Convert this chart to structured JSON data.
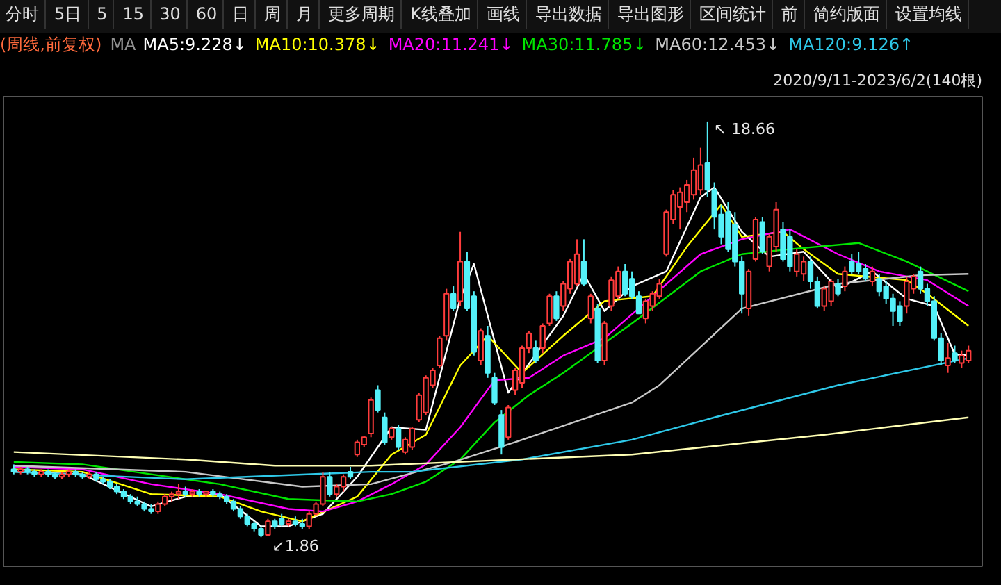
{
  "chart_data": {
    "type": "candlestick",
    "title": "(周线,前复权)",
    "subtitle": "2020/9/11-2023/6/2(140根)",
    "legend_title": "MA",
    "legend": "top",
    "annotations": [
      "分时",
      "5日",
      "5",
      "15",
      "30",
      "60",
      "日",
      "周",
      "月",
      "更多周期",
      "K线叠加",
      "画线",
      "导出数据",
      "导出图形",
      "区间统计",
      "前",
      "简约版面",
      "设置均线"
    ],
    "colors": [
      "#54f0f8",
      "#ff3c3c",
      "#54f0f8",
      "#54f0f8",
      "#ff3c3c",
      "#54f0f8",
      "#54f0f8",
      "#ff3c3c",
      "#ff3c3c",
      "#54f0f8",
      "#54f0f8",
      "#ff3c3c",
      "#54f0f8",
      "#54f0f8",
      "#54f0f8",
      "#54f0f8",
      "#54f0f8",
      "#54f0f8",
      "#54f0f8",
      "#54f0f8",
      "#54f0f8",
      "#ff3c3c",
      "#ff3c3c",
      "#ff3c3c",
      "#ff3c3c",
      "#54f0f8",
      "#ff3c3c",
      "#54f0f8",
      "#ff3c3c",
      "#54f0f8",
      "#54f0f8",
      "#54f0f8",
      "#54f0f8",
      "#54f0f8",
      "#54f0f8",
      "#54f0f8",
      "#54f0f8",
      "#ff3c3c",
      "#54f0f8",
      "#54f0f8",
      "#ff3c3c",
      "#54f0f8",
      "#54f0f8",
      "#ff3c3c",
      "#ff3c3c",
      "#ff3c3c",
      "#54f0f8",
      "#ff3c3c",
      "#ff3c3c",
      "#54f0f8",
      "#ff3c3c",
      "#ff3c3c",
      "#ff3c3c",
      "#54f0f8",
      "#54f0f8",
      "#ff3c3c",
      "#54f0f8",
      "#ff3c3c",
      "#ff3c3c",
      "#ff3c3c",
      "#ff3c3c",
      "#ff3c3c",
      "#ff3c3c",
      "#ff3c3c",
      "#54f0f8",
      "#ff3c3c",
      "#54f0f8",
      "#54f0f8",
      "#ff3c3c",
      "#54f0f8",
      "#54f0f8",
      "#54f0f8",
      "#ff3c3c",
      "#ff3c3c",
      "#ff3c3c",
      "#ff3c3c",
      "#54f0f8",
      "#ff3c3c",
      "#ff3c3c",
      "#54f0f8",
      "#ff3c3c",
      "#ff3c3c",
      "#ff3c3c",
      "#54f0f8",
      "#ff3c3c",
      "#54f0f8",
      "#ff3c3c",
      "#ff3c3c",
      "#ff3c3c",
      "#54f0f8",
      "#54f0f8",
      "#54f0f8",
      "#ff3c3c",
      "#ff3c3c",
      "#ff3c3c",
      "#ff3c3c",
      "#ff3c3c",
      "#ff3c3c",
      "#ff3c3c",
      "#ff3c3c",
      "#ff3c3c",
      "#54f0f8",
      "#54f0f8",
      "#54f0f8",
      "#54f0f8",
      "#54f0f8",
      "#54f0f8",
      "#ff3c3c",
      "#ff3c3c",
      "#54f0f8",
      "#ff3c3c",
      "#ff3c3c",
      "#54f0f8",
      "#54f0f8",
      "#ff3c3c",
      "#ff3c3c",
      "#54f0f8",
      "#54f0f8",
      "#ff3c3c",
      "#ff3c3c",
      "#54f0f8",
      "#ff3c3c",
      "#54f0f8",
      "#54f0f8",
      "#54f0f8",
      "#ff3c3c",
      "#54f0f8",
      "#54f0f8",
      "#54f0f8",
      "#54f0f8",
      "#ff3c3c",
      "#ff3c3c",
      "#54f0f8",
      "#54f0f8",
      "#54f0f8",
      "#54f0f8",
      "#ff3c3c",
      "#54f0f8",
      "#ff3c3c",
      "#ff3c3c"
    ],
    "categories": [
      null,
      null,
      null,
      null,
      null,
      null,
      null,
      null,
      null,
      null,
      null,
      null,
      null,
      null,
      null,
      null,
      null,
      null,
      null,
      null,
      null,
      null,
      null,
      null,
      null,
      null,
      null,
      null,
      null,
      null,
      null,
      null,
      null,
      null,
      null,
      null,
      null,
      null,
      null,
      null,
      null,
      null,
      null,
      null,
      null,
      null,
      null,
      null,
      null,
      null,
      null,
      null,
      null,
      null,
      null,
      null,
      null,
      null,
      null,
      null,
      null,
      null,
      null,
      null,
      null,
      null,
      null,
      null,
      null,
      null,
      null,
      null,
      null,
      null,
      null,
      null,
      null,
      null,
      null,
      null,
      null,
      null,
      null,
      null,
      null,
      null,
      null,
      null,
      null,
      null,
      null,
      null,
      null,
      null,
      null,
      null,
      null,
      null,
      null,
      null,
      null,
      null,
      null,
      null,
      null,
      null,
      null,
      null,
      null,
      null,
      null,
      null,
      null,
      null,
      null,
      null,
      null,
      null,
      null,
      null,
      null,
      null,
      null,
      null,
      null,
      null,
      null,
      null,
      null,
      null,
      null,
      null,
      null,
      null,
      null,
      null,
      null,
      null,
      null,
      null
    ],
    "ohlc": [
      [
        4.6,
        4.8,
        4.4,
        4.5
      ],
      [
        4.5,
        4.7,
        4.4,
        4.6
      ],
      [
        4.6,
        4.7,
        4.4,
        4.5
      ],
      [
        4.5,
        4.6,
        4.3,
        4.4
      ],
      [
        4.4,
        4.6,
        4.3,
        4.5
      ],
      [
        4.5,
        4.6,
        4.3,
        4.4
      ],
      [
        4.4,
        4.5,
        4.2,
        4.3
      ],
      [
        4.3,
        4.5,
        4.2,
        4.4
      ],
      [
        4.4,
        4.6,
        4.3,
        4.5
      ],
      [
        4.5,
        4.6,
        4.3,
        4.4
      ],
      [
        4.4,
        4.5,
        4.2,
        4.3
      ],
      [
        4.3,
        4.5,
        4.2,
        4.4
      ],
      [
        4.4,
        4.5,
        4.1,
        4.2
      ],
      [
        4.2,
        4.3,
        4.0,
        4.1
      ],
      [
        4.1,
        4.2,
        3.8,
        3.9
      ],
      [
        3.9,
        4.0,
        3.6,
        3.7
      ],
      [
        3.7,
        3.8,
        3.4,
        3.5
      ],
      [
        3.5,
        3.6,
        3.2,
        3.3
      ],
      [
        3.3,
        3.5,
        3.1,
        3.2
      ],
      [
        3.2,
        3.3,
        2.9,
        3.0
      ],
      [
        3.0,
        3.2,
        2.8,
        2.9
      ],
      [
        2.9,
        3.3,
        2.8,
        3.2
      ],
      [
        3.2,
        3.6,
        3.1,
        3.5
      ],
      [
        3.5,
        3.7,
        3.3,
        3.6
      ],
      [
        3.6,
        4.0,
        3.4,
        3.7
      ],
      [
        3.7,
        3.9,
        3.5,
        3.6
      ],
      [
        3.6,
        3.8,
        3.5,
        3.7
      ],
      [
        3.7,
        3.8,
        3.5,
        3.6
      ],
      [
        3.6,
        3.7,
        3.5,
        3.7
      ],
      [
        3.7,
        3.8,
        3.5,
        3.6
      ],
      [
        3.6,
        3.7,
        3.4,
        3.5
      ],
      [
        3.5,
        3.6,
        3.2,
        3.3
      ],
      [
        3.3,
        3.4,
        2.9,
        3.0
      ],
      [
        3.0,
        3.1,
        2.6,
        2.7
      ],
      [
        2.7,
        2.8,
        2.3,
        2.4
      ],
      [
        2.4,
        2.5,
        2.1,
        2.2
      ],
      [
        2.2,
        2.3,
        1.86,
        1.95
      ],
      [
        1.95,
        2.6,
        1.9,
        2.5
      ],
      [
        2.5,
        2.6,
        2.2,
        2.3
      ],
      [
        2.6,
        2.8,
        2.3,
        2.4
      ],
      [
        2.4,
        2.6,
        2.3,
        2.5
      ],
      [
        2.5,
        2.7,
        2.3,
        2.4
      ],
      [
        2.4,
        2.6,
        2.2,
        2.3
      ],
      [
        2.3,
        2.9,
        2.2,
        2.8
      ],
      [
        2.8,
        3.3,
        2.7,
        3.2
      ],
      [
        3.2,
        4.5,
        3.1,
        4.3
      ],
      [
        4.3,
        4.5,
        3.5,
        3.6
      ],
      [
        3.6,
        4.0,
        3.5,
        3.9
      ],
      [
        3.9,
        4.4,
        3.7,
        4.3
      ],
      [
        4.5,
        4.7,
        4.2,
        4.3
      ],
      [
        5.2,
        5.8,
        5.1,
        5.7
      ],
      [
        5.6,
        5.95,
        5.5,
        5.9
      ],
      [
        6.05,
        7.5,
        5.9,
        7.4
      ],
      [
        7.8,
        8.0,
        6.9,
        7.0
      ],
      [
        6.7,
        6.9,
        5.6,
        5.7
      ],
      [
        5.9,
        6.3,
        5.8,
        6.25
      ],
      [
        6.25,
        6.4,
        5.4,
        5.5
      ],
      [
        5.3,
        5.9,
        5.2,
        5.8
      ],
      [
        5.5,
        6.3,
        5.4,
        6.25
      ],
      [
        6.6,
        7.7,
        6.5,
        7.6
      ],
      [
        6.9,
        8.4,
        6.8,
        8.3
      ],
      [
        8.0,
        8.7,
        7.9,
        8.6
      ],
      [
        8.8,
        10.0,
        8.7,
        9.9
      ],
      [
        10.0,
        11.9,
        9.8,
        11.7
      ],
      [
        11.7,
        12.0,
        11.0,
        11.1
      ],
      [
        11.4,
        14.2,
        11.2,
        13.0
      ],
      [
        13.0,
        13.4,
        11.0,
        11.1
      ],
      [
        11.6,
        11.8,
        9.2,
        9.35
      ],
      [
        9.0,
        10.3,
        8.8,
        10.2
      ],
      [
        10.0,
        10.4,
        8.3,
        8.5
      ],
      [
        8.3,
        8.5,
        7.2,
        7.3
      ],
      [
        6.8,
        7.0,
        5.2,
        5.5
      ],
      [
        5.9,
        7.2,
        5.8,
        7.1
      ],
      [
        7.8,
        8.7,
        7.6,
        8.6
      ],
      [
        8.1,
        9.6,
        7.9,
        9.5
      ],
      [
        9.5,
        10.2,
        9.3,
        10.1
      ],
      [
        9.5,
        9.8,
        8.9,
        9.0
      ],
      [
        9.5,
        10.5,
        9.3,
        10.4
      ],
      [
        10.5,
        11.7,
        10.4,
        11.6
      ],
      [
        11.6,
        11.8,
        10.6,
        10.7
      ],
      [
        11.2,
        12.2,
        11.0,
        12.1
      ],
      [
        11.9,
        13.1,
        11.7,
        13.0
      ],
      [
        12.1,
        13.9,
        12.0,
        13.3
      ],
      [
        13.0,
        13.9,
        12.0,
        12.1
      ],
      [
        10.7,
        11.7,
        10.5,
        11.6
      ],
      [
        11.1,
        11.3,
        8.9,
        9.0
      ],
      [
        9.0,
        10.6,
        8.8,
        10.5
      ],
      [
        11.2,
        12.4,
        11.0,
        12.25
      ],
      [
        11.6,
        12.8,
        11.5,
        12.6
      ],
      [
        12.6,
        12.9,
        11.6,
        11.7
      ],
      [
        12.3,
        12.6,
        11.5,
        11.6
      ],
      [
        11.6,
        11.8,
        10.9,
        10.9
      ],
      [
        10.7,
        11.5,
        10.5,
        11.4
      ],
      [
        11.2,
        11.8,
        11.0,
        11.7
      ],
      [
        11.6,
        12.3,
        11.5,
        12.1
      ],
      [
        13.3,
        15.1,
        13.2,
        15.0
      ],
      [
        14.7,
        15.9,
        14.5,
        15.7
      ],
      [
        15.2,
        16.0,
        14.3,
        15.8
      ],
      [
        15.4,
        16.3,
        15.0,
        16.1
      ],
      [
        15.7,
        17.2,
        15.5,
        16.7
      ],
      [
        15.9,
        17.6,
        15.7,
        16.9
      ],
      [
        17.0,
        18.66,
        15.6,
        15.9
      ],
      [
        15.9,
        16.2,
        14.3,
        14.8
      ],
      [
        14.9,
        15.3,
        13.7,
        14.0
      ],
      [
        15.0,
        15.4,
        13.4,
        13.5
      ],
      [
        14.5,
        15.0,
        12.8,
        13.0
      ],
      [
        13.0,
        13.2,
        10.9,
        11.7
      ],
      [
        11.1,
        12.7,
        10.8,
        12.6
      ],
      [
        13.1,
        14.8,
        13.0,
        14.7
      ],
      [
        14.6,
        14.8,
        13.3,
        13.4
      ],
      [
        12.8,
        14.1,
        12.6,
        14.0
      ],
      [
        13.6,
        15.4,
        13.4,
        15.1
      ],
      [
        14.3,
        14.6,
        13.0,
        13.1
      ],
      [
        14.0,
        14.3,
        12.6,
        12.8
      ],
      [
        12.6,
        13.5,
        12.4,
        13.3
      ],
      [
        12.5,
        13.2,
        12.2,
        13.0
      ],
      [
        13.0,
        13.2,
        11.9,
        12.2
      ],
      [
        12.2,
        12.4,
        11.1,
        11.2
      ],
      [
        11.2,
        12.0,
        11.0,
        11.9
      ],
      [
        11.4,
        12.3,
        11.2,
        12.2
      ],
      [
        12.1,
        12.3,
        11.6,
        11.7
      ],
      [
        12.0,
        12.8,
        11.8,
        12.6
      ],
      [
        13.0,
        13.3,
        12.5,
        12.6
      ],
      [
        12.9,
        13.4,
        12.5,
        12.6
      ],
      [
        12.7,
        12.9,
        12.2,
        12.3
      ],
      [
        12.2,
        12.8,
        12.0,
        12.6
      ],
      [
        12.3,
        12.5,
        11.6,
        11.8
      ],
      [
        12.0,
        12.2,
        11.3,
        11.5
      ],
      [
        11.5,
        11.7,
        10.4,
        11.0
      ],
      [
        11.2,
        11.4,
        10.4,
        10.6
      ],
      [
        11.2,
        12.4,
        10.9,
        12.2
      ],
      [
        11.9,
        12.5,
        11.7,
        12.4
      ],
      [
        12.6,
        12.8,
        11.7,
        11.9
      ],
      [
        11.9,
        12.1,
        11.2,
        11.4
      ],
      [
        11.4,
        11.6,
        9.8,
        9.9
      ],
      [
        9.9,
        10.1,
        8.8,
        9.0
      ],
      [
        8.8,
        9.7,
        8.5,
        9.1
      ],
      [
        9.3,
        9.6,
        8.9,
        9.0
      ],
      [
        8.9,
        9.4,
        8.7,
        9.2
      ],
      [
        9.0,
        9.6,
        8.9,
        9.4
      ]
    ],
    "value_labels": [
      null,
      null,
      null,
      null,
      null,
      null,
      null,
      null,
      null,
      null,
      null,
      null,
      null,
      null,
      null,
      null,
      null,
      null,
      null,
      null,
      null,
      null,
      null,
      null,
      null,
      null,
      null,
      null,
      null,
      null,
      null,
      null,
      null,
      null,
      null,
      null,
      "↙1.86",
      null,
      null,
      null,
      null,
      null,
      null,
      null,
      null,
      null,
      null,
      null,
      null,
      null,
      null,
      null,
      null,
      null,
      null,
      null,
      null,
      null,
      null,
      null,
      null,
      null,
      null,
      null,
      null,
      null,
      null,
      null,
      null,
      null,
      null,
      null,
      null,
      null,
      null,
      null,
      null,
      null,
      null,
      null,
      null,
      null,
      null,
      null,
      null,
      null,
      null,
      null,
      null,
      null,
      null,
      null,
      null,
      null,
      null,
      null,
      null,
      null,
      null,
      null,
      null,
      "↖ 18.66",
      null,
      null,
      null,
      null,
      null,
      null,
      null,
      null,
      null,
      null,
      null,
      null,
      null,
      null,
      null,
      null,
      null,
      null,
      null,
      null,
      null,
      null,
      null,
      null,
      null,
      null,
      null,
      null,
      null,
      null,
      null,
      null,
      null,
      null,
      null,
      null,
      null,
      null
    ],
    "series": [
      {
        "type": "line",
        "name": "MA5:9.228↓",
        "color": "#ffffff",
        "values": [
          4.5,
          null,
          null,
          null,
          null,
          null,
          null,
          null,
          null,
          null,
          4.4,
          null,
          null,
          null,
          null,
          null,
          null,
          null,
          null,
          null,
          3.1,
          null,
          null,
          null,
          null,
          3.5,
          null,
          null,
          null,
          null,
          3.6,
          null,
          null,
          null,
          null,
          null,
          2.3,
          null,
          null,
          null,
          2.3,
          null,
          null,
          null,
          null,
          2.8,
          null,
          null,
          null,
          null,
          4.3,
          null,
          null,
          null,
          null,
          6.3,
          null,
          null,
          null,
          null,
          6.2,
          null,
          null,
          null,
          null,
          11.5,
          null,
          12.9,
          null,
          null,
          null,
          null,
          7.7,
          null,
          null,
          null,
          null,
          null,
          null,
          null,
          10.8,
          null,
          null,
          12.5,
          null,
          null,
          11.0,
          null,
          null,
          null,
          12.0,
          null,
          null,
          null,
          null,
          12.6,
          null,
          null,
          null,
          null,
          15.6,
          null,
          16.0,
          null,
          null,
          null,
          14.2,
          null,
          null,
          null,
          13.2,
          null,
          null,
          null,
          null,
          13.4,
          null,
          null,
          null,
          null,
          11.9,
          null,
          null,
          null,
          null,
          12.6,
          null,
          null,
          null,
          null,
          11.5,
          null,
          null,
          null,
          11.2,
          null,
          null,
          9.25,
          null,
          9.2
        ]
      },
      {
        "type": "line",
        "name": "MA10:10.378↓",
        "color": "#ffff00",
        "values": [
          4.6,
          null,
          null,
          null,
          null,
          null,
          null,
          null,
          null,
          null,
          4.5,
          null,
          null,
          null,
          null,
          null,
          null,
          null,
          null,
          null,
          3.6,
          null,
          null,
          null,
          null,
          null,
          null,
          null,
          null,
          null,
          3.5,
          null,
          null,
          null,
          null,
          null,
          2.9,
          null,
          null,
          null,
          null,
          null,
          2.5,
          null,
          null,
          null,
          null,
          null,
          null,
          null,
          3.5,
          null,
          null,
          null,
          null,
          5.2,
          null,
          null,
          null,
          null,
          6.0,
          null,
          null,
          null,
          null,
          8.8,
          null,
          null,
          null,
          10.0,
          null,
          null,
          null,
          null,
          8.5,
          null,
          null,
          null,
          null,
          null,
          10.0,
          null,
          null,
          null,
          null,
          null,
          11.4,
          null,
          null,
          null,
          null,
          null,
          null,
          11.6,
          null,
          null,
          null,
          null,
          13.6,
          null,
          null,
          null,
          null,
          15.3,
          null,
          null,
          14.0,
          null,
          null,
          null,
          null,
          null,
          14.2,
          null,
          null,
          13.5,
          null,
          null,
          null,
          null,
          12.5,
          null,
          null,
          null,
          null,
          null,
          null,
          null,
          null,
          null,
          12.25,
          null,
          null,
          11.7,
          null,
          null,
          null,
          null,
          null,
          10.4
        ]
      },
      {
        "type": "line",
        "name": "MA20:11.241↓",
        "color": "#ff00ff",
        "values": [
          4.7,
          null,
          null,
          null,
          null,
          null,
          null,
          null,
          null,
          null,
          4.6,
          null,
          null,
          null,
          null,
          null,
          null,
          null,
          null,
          null,
          4.0,
          null,
          null,
          null,
          null,
          null,
          null,
          null,
          null,
          null,
          3.6,
          null,
          null,
          null,
          null,
          null,
          null,
          null,
          null,
          null,
          3.0,
          null,
          null,
          null,
          null,
          2.9,
          null,
          null,
          null,
          null,
          3.3,
          null,
          null,
          null,
          null,
          4.0,
          null,
          null,
          null,
          null,
          4.8,
          null,
          null,
          null,
          null,
          6.3,
          null,
          null,
          null,
          null,
          8.2,
          null,
          null,
          null,
          null,
          8.3,
          null,
          null,
          null,
          null,
          9.2,
          null,
          null,
          null,
          null,
          null,
          9.9,
          null,
          null,
          null,
          null,
          null,
          null,
          11.6,
          null,
          null,
          null,
          null,
          null,
          null,
          13.3,
          null,
          null,
          null,
          null,
          null,
          13.9,
          null,
          null,
          null,
          null,
          null,
          null,
          14.3,
          null,
          null,
          null,
          null,
          null,
          null,
          13.3,
          null,
          null,
          null,
          null,
          null,
          12.6,
          null,
          null,
          null,
          null,
          null,
          null,
          12.25,
          null,
          null,
          null,
          null,
          null,
          11.2
        ]
      },
      {
        "type": "line",
        "name": "MA30:11.785↓",
        "color": "#00e600",
        "values": [
          4.9,
          null,
          null,
          null,
          null,
          null,
          null,
          null,
          null,
          null,
          4.8,
          null,
          null,
          null,
          null,
          null,
          null,
          null,
          null,
          null,
          4.4,
          null,
          null,
          null,
          null,
          null,
          null,
          null,
          null,
          null,
          4.0,
          null,
          null,
          null,
          null,
          null,
          null,
          null,
          null,
          null,
          3.4,
          null,
          null,
          null,
          null,
          null,
          null,
          null,
          null,
          null,
          3.3,
          null,
          null,
          null,
          null,
          3.6,
          null,
          null,
          null,
          null,
          4.1,
          null,
          null,
          null,
          null,
          5.0,
          null,
          null,
          null,
          null,
          6.5,
          null,
          null,
          null,
          null,
          7.6,
          null,
          null,
          null,
          null,
          8.5,
          null,
          null,
          null,
          null,
          9.5,
          null,
          null,
          null,
          null,
          10.5,
          null,
          null,
          null,
          null,
          null,
          null,
          null,
          null,
          null,
          12.6,
          null,
          null,
          null,
          null,
          null,
          13.3,
          null,
          null,
          null,
          null,
          null,
          null,
          13.5,
          null,
          null,
          null,
          null,
          null,
          null,
          null,
          null,
          null,
          13.75,
          null,
          null,
          null,
          null,
          null,
          null,
          13.0,
          null,
          null,
          null,
          null,
          null,
          null,
          null,
          null,
          11.8
        ]
      },
      {
        "type": "line",
        "name": "MA60:12.453↓",
        "color": "#c8c8c8",
        "values": [
          4.75,
          null,
          null,
          null,
          null,
          null,
          null,
          null,
          null,
          null,
          null,
          null,
          null,
          null,
          null,
          null,
          null,
          null,
          null,
          null,
          null,
          null,
          null,
          null,
          null,
          4.5,
          null,
          null,
          null,
          null,
          null,
          null,
          null,
          null,
          null,
          null,
          null,
          null,
          null,
          null,
          null,
          null,
          3.9,
          null,
          null,
          null,
          null,
          null,
          null,
          null,
          null,
          null,
          4.0,
          null,
          null,
          null,
          null,
          null,
          null,
          null,
          null,
          null,
          null,
          null,
          4.9,
          null,
          null,
          null,
          null,
          null,
          null,
          null,
          null,
          5.7,
          null,
          null,
          null,
          null,
          null,
          null,
          null,
          null,
          null,
          null,
          null,
          null,
          null,
          null,
          null,
          null,
          7.3,
          null,
          null,
          null,
          8.0,
          null,
          null,
          null,
          null,
          null,
          null,
          null,
          null,
          null,
          null,
          null,
          11.1,
          null,
          null,
          null,
          null,
          null,
          null,
          null,
          null,
          null,
          null,
          null,
          null,
          null,
          12.1,
          null,
          null,
          null,
          null,
          null,
          null,
          null,
          null,
          null,
          null,
          null,
          12.45,
          null,
          null,
          null,
          null,
          null,
          null,
          12.5
        ]
      },
      {
        "type": "line",
        "name": "MA120:9.126↑",
        "color": "#2ec8e8",
        "values": [
          4.5,
          null,
          null,
          null,
          null,
          null,
          null,
          null,
          null,
          null,
          null,
          null,
          null,
          null,
          null,
          null,
          null,
          null,
          null,
          null,
          null,
          null,
          null,
          null,
          null,
          4.2,
          null,
          null,
          null,
          null,
          null,
          null,
          null,
          null,
          null,
          null,
          null,
          null,
          null,
          null,
          null,
          null,
          null,
          null,
          null,
          null,
          null,
          null,
          null,
          null,
          null,
          null,
          4.5,
          null,
          null,
          null,
          null,
          null,
          4.5,
          null,
          null,
          null,
          null,
          null,
          null,
          null,
          null,
          null,
          null,
          null,
          null,
          null,
          null,
          null,
          5.0,
          null,
          null,
          null,
          null,
          null,
          null,
          null,
          null,
          null,
          null,
          null,
          null,
          null,
          null,
          null,
          5.8,
          null,
          null,
          null,
          null,
          null,
          null,
          null,
          null,
          null,
          null,
          null,
          6.7,
          null,
          null,
          null,
          null,
          null,
          null,
          null,
          null,
          null,
          null,
          null,
          null,
          null,
          null,
          null,
          null,
          null,
          8.0,
          null,
          null,
          null,
          null,
          null,
          null,
          null,
          null,
          null,
          null,
          null,
          null,
          null,
          null,
          null,
          null,
          null,
          null,
          9.1
        ]
      },
      {
        "type": "line",
        "color": "#ffffb4",
        "values": [
          5.3,
          null,
          null,
          null,
          null,
          null,
          null,
          null,
          null,
          null,
          null,
          null,
          null,
          null,
          null,
          null,
          null,
          null,
          null,
          null,
          null,
          null,
          null,
          null,
          null,
          5.0,
          null,
          null,
          null,
          null,
          null,
          null,
          null,
          null,
          null,
          null,
          null,
          null,
          4.75,
          null,
          null,
          null,
          null,
          null,
          null,
          null,
          null,
          null,
          null,
          null,
          null,
          null,
          4.75,
          null,
          null,
          null,
          null,
          null,
          null,
          null,
          null,
          null,
          null,
          null,
          null,
          null,
          null,
          null,
          null,
          null,
          null,
          null,
          null,
          null,
          null,
          null,
          null,
          null,
          null,
          null,
          null,
          null,
          null,
          null,
          null,
          null,
          null,
          null,
          null,
          null,
          5.2,
          null,
          null,
          null,
          null,
          null,
          null,
          null,
          null,
          null,
          null,
          null,
          null,
          null,
          null,
          null,
          null,
          null,
          null,
          null,
          null,
          null,
          null,
          null,
          null,
          null,
          null,
          null,
          6.0,
          null,
          null,
          null,
          null,
          null,
          null,
          null,
          null,
          null,
          null,
          null,
          null,
          null,
          null,
          null,
          null,
          null,
          null,
          null,
          null,
          6.7
        ]
      }
    ]
  }
}
